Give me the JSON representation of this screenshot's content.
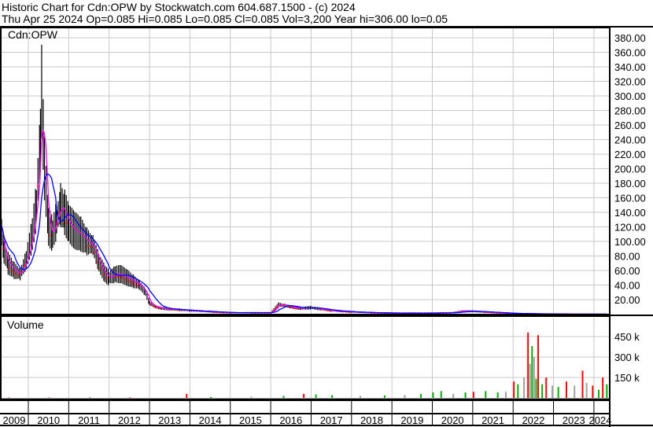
{
  "header": {
    "line1": "Historic Chart for Cdn:OPW by Stockwatch.com 604.687.1500 - (c) 2024",
    "line2": "Thu Apr 25 2024  Op=0.085  Hi=0.085  Lo=0.085  Cl=0.085  Vol=3,200  Year hi=306.00  lo=0.05"
  },
  "chart_data": [
    {
      "type": "line",
      "title": "Cdn:OPW",
      "ylim": [
        0,
        390
      ],
      "yticks": [
        "20.00",
        "40.00",
        "60.00",
        "80.00",
        "100.00",
        "120.00",
        "140.00",
        "160.00",
        "180.00",
        "200.00",
        "220.00",
        "240.00",
        "260.00",
        "280.00",
        "300.00",
        "320.00",
        "340.00",
        "360.00",
        "380.00"
      ],
      "grid": true,
      "colors": {
        "price": "#000000",
        "close_marks": "#ff0000",
        "short_ma": "#ff00ff",
        "long_ma": "#0000ff"
      },
      "x": [
        2009.3,
        2009.4,
        2009.5,
        2009.65,
        2009.8,
        2009.95,
        2010.1,
        2010.2,
        2010.3,
        2010.33,
        2010.4,
        2010.5,
        2010.6,
        2010.7,
        2010.8,
        2010.9,
        2011.0,
        2011.15,
        2011.3,
        2011.45,
        2011.6,
        2011.75,
        2011.9,
        2012.0,
        2012.15,
        2012.3,
        2012.45,
        2012.6,
        2012.75,
        2012.9,
        2013.0,
        2013.15,
        2013.3,
        2013.5,
        2013.75,
        2014.0,
        2014.3,
        2014.6,
        2015.0,
        2015.5,
        2016.0,
        2016.2,
        2016.35,
        2016.5,
        2016.75,
        2017.0,
        2017.25,
        2017.5,
        2017.75,
        2018.0,
        2018.5,
        2019.0,
        2019.5,
        2020.0,
        2020.5,
        2020.75,
        2021.0,
        2021.3,
        2021.6,
        2022.0,
        2022.5,
        2023.0,
        2023.5,
        2024.0,
        2024.32
      ],
      "values": [
        130,
        85,
        70,
        60,
        55,
        75,
        110,
        150,
        240,
        306,
        200,
        120,
        110,
        130,
        150,
        140,
        125,
        115,
        110,
        100,
        95,
        70,
        55,
        50,
        55,
        55,
        50,
        45,
        40,
        30,
        15,
        10,
        8,
        7,
        6,
        5,
        4,
        3,
        2,
        2,
        2,
        13,
        12,
        10,
        8,
        9,
        7,
        5,
        4,
        3,
        2,
        1.5,
        1.5,
        1.5,
        2,
        4,
        4,
        3,
        2,
        1,
        0.5,
        0.2,
        0.1,
        0.09,
        0.085
      ]
    },
    {
      "type": "bar",
      "title": "Volume",
      "yticks": [
        "150 k",
        "300 k",
        "450 k"
      ],
      "ylim": [
        0,
        500000
      ],
      "colors": {
        "down": "#ff0000",
        "up": "#00b000",
        "flat": "#a0a0a0"
      },
      "x": [
        2009.5,
        2010.5,
        2011.5,
        2012.5,
        2013.9,
        2014.5,
        2015.5,
        2016.3,
        2016.8,
        2017.1,
        2017.5,
        2018.2,
        2018.8,
        2019.3,
        2019.7,
        2020.0,
        2020.2,
        2020.5,
        2020.8,
        2021.0,
        2021.3,
        2021.6,
        2021.8,
        2022.0,
        2022.1,
        2022.25,
        2022.35,
        2022.4,
        2022.45,
        2022.5,
        2022.55,
        2022.6,
        2022.7,
        2022.8,
        2022.95,
        2023.1,
        2023.3,
        2023.5,
        2023.7,
        2023.8,
        2023.95,
        2024.1,
        2024.2,
        2024.3
      ],
      "values": [
        3000,
        3000,
        3000,
        4000,
        30000,
        8000,
        10000,
        15000,
        30000,
        25000,
        20000,
        15000,
        18000,
        20000,
        30000,
        40000,
        50000,
        30000,
        40000,
        45000,
        50000,
        40000,
        45000,
        120000,
        100000,
        150000,
        480000,
        250000,
        380000,
        300000,
        140000,
        460000,
        100000,
        150000,
        90000,
        80000,
        120000,
        90000,
        200000,
        110000,
        90000,
        60000,
        150000,
        100000
      ],
      "kinds": [
        "down",
        "down",
        "down",
        "down",
        "down",
        "up",
        "flat",
        "up",
        "down",
        "up",
        "up",
        "flat",
        "up",
        "flat",
        "up",
        "up",
        "up",
        "flat",
        "up",
        "down",
        "up",
        "up",
        "flat",
        "down",
        "up",
        "flat",
        "down",
        "flat",
        "up",
        "flat",
        "up",
        "down",
        "up",
        "down",
        "flat",
        "up",
        "down",
        "flat",
        "down",
        "flat",
        "down",
        "up",
        "down",
        "up"
      ]
    }
  ],
  "xaxis": {
    "years": [
      "2009",
      "2010",
      "2011",
      "2012",
      "2013",
      "2014",
      "2015",
      "2016",
      "2017",
      "2018",
      "2019",
      "2020",
      "2021",
      "2022",
      "2023",
      "2024"
    ]
  }
}
